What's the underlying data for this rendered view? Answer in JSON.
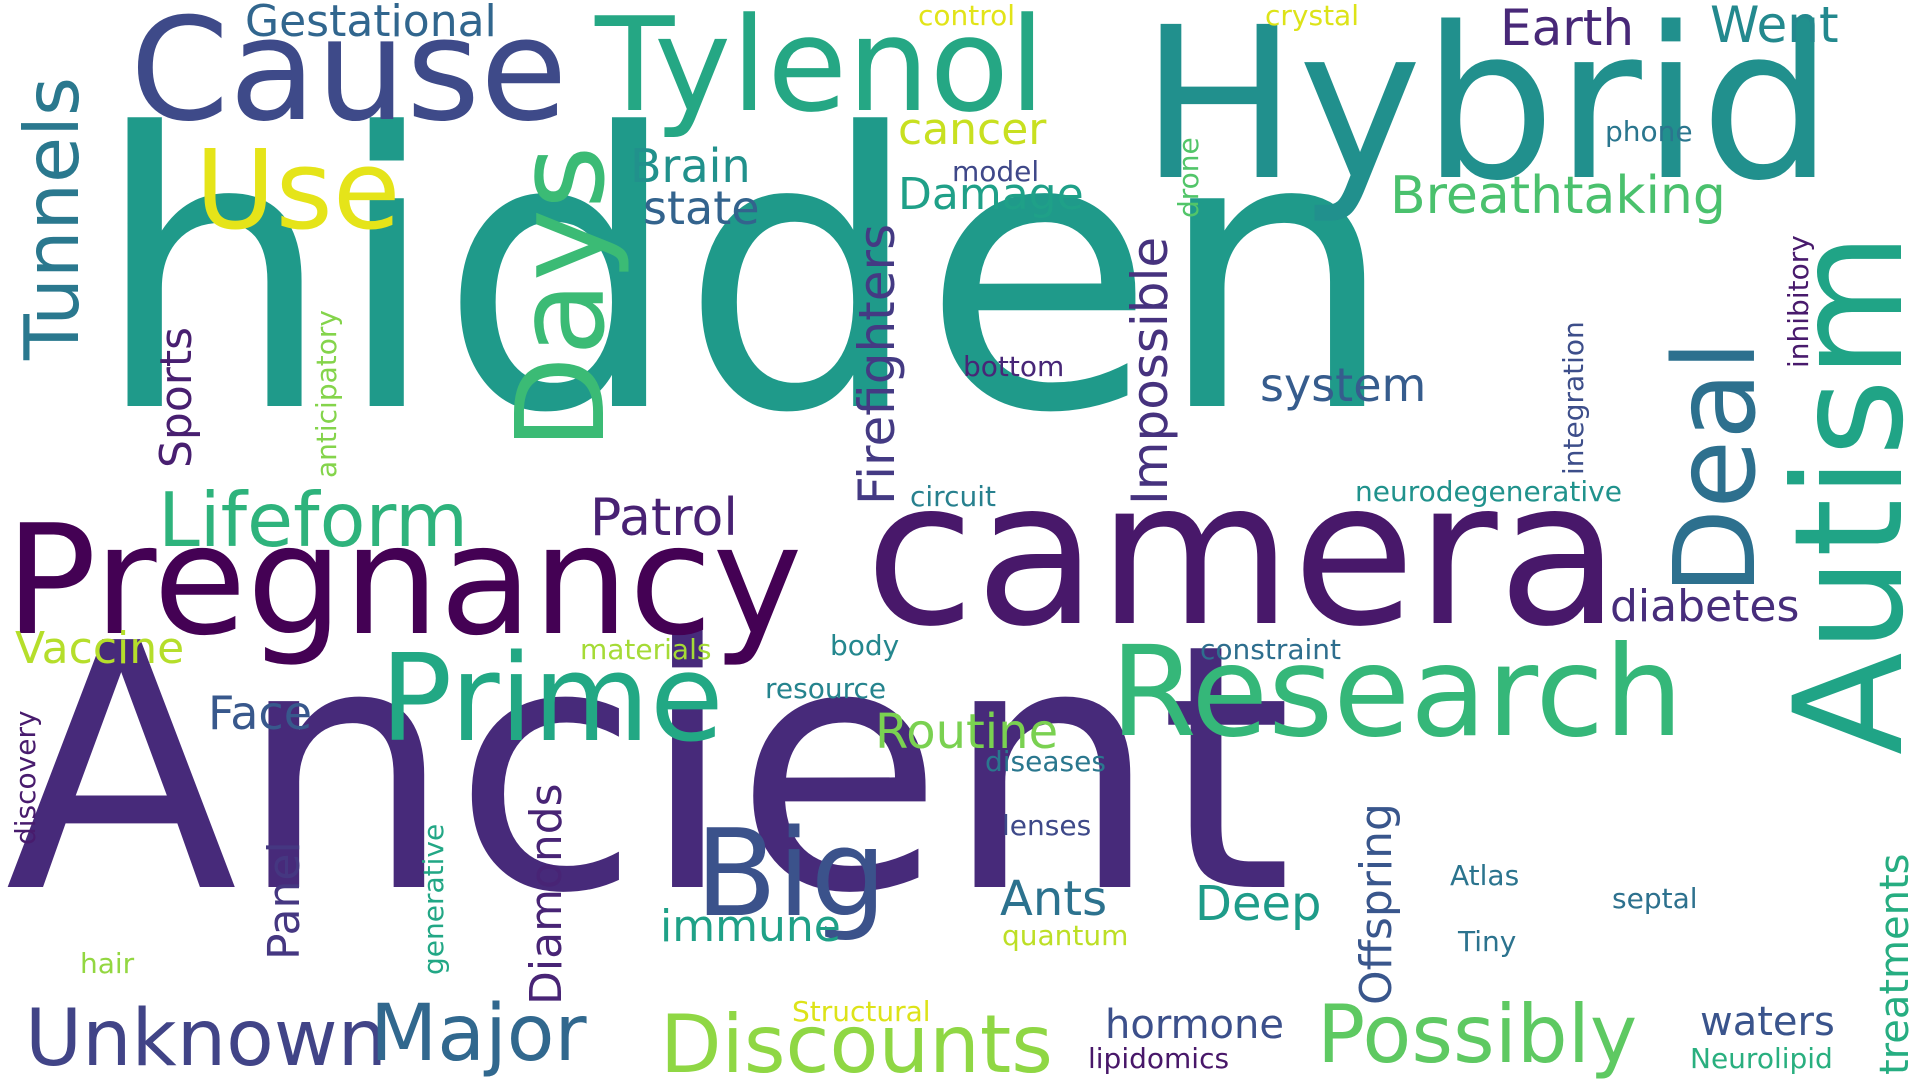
{
  "words": [
    {
      "id": "hidden",
      "text": "hidden",
      "color": "#1f9a8a"
    },
    {
      "id": "ancient",
      "text": "Ancient",
      "color": "#472a7a"
    },
    {
      "id": "camera",
      "text": "camera",
      "color": "#48186a"
    },
    {
      "id": "hybrid",
      "text": "Hybrid",
      "color": "#21908d"
    },
    {
      "id": "pregnancy",
      "text": "Pregnancy",
      "color": "#440154"
    },
    {
      "id": "cause",
      "text": "Cause",
      "color": "#3e4a89"
    },
    {
      "id": "tylenol",
      "text": "Tylenol",
      "color": "#25a784"
    },
    {
      "id": "research",
      "text": "Research",
      "color": "#35b779"
    },
    {
      "id": "prime",
      "text": "Prime",
      "color": "#22a884"
    },
    {
      "id": "autism",
      "text": "Autism",
      "color": "#20a486"
    },
    {
      "id": "days",
      "text": "Days",
      "color": "#3bbb75"
    },
    {
      "id": "use",
      "text": "Use",
      "color": "#e5e419"
    },
    {
      "id": "deal",
      "text": "Deal",
      "color": "#2d708e"
    },
    {
      "id": "big",
      "text": "Big",
      "color": "#3b528b"
    },
    {
      "id": "lifeform",
      "text": "Lifeform",
      "color": "#2eb37c"
    },
    {
      "id": "discounts",
      "text": "Discounts",
      "color": "#8fd744"
    },
    {
      "id": "possibly",
      "text": "Possibly",
      "color": "#5ec962"
    },
    {
      "id": "unknown",
      "text": "Unknown",
      "color": "#414487"
    },
    {
      "id": "major",
      "text": "Major",
      "color": "#31688e"
    },
    {
      "id": "tunnels",
      "text": "Tunnels",
      "color": "#2a788e"
    },
    {
      "id": "impossible",
      "text": "Impossible",
      "color": "#46327e"
    },
    {
      "id": "firefighters",
      "text": "Firefighters",
      "color": "#443a83"
    },
    {
      "id": "breathtaking",
      "text": "Breathtaking",
      "color": "#4ac16d"
    },
    {
      "id": "patrol",
      "text": "Patrol",
      "color": "#482173"
    },
    {
      "id": "gestational",
      "text": "Gestational",
      "color": "#31668e"
    },
    {
      "id": "earth",
      "text": "Earth",
      "color": "#482878"
    },
    {
      "id": "went",
      "text": "Went",
      "color": "#23898e"
    },
    {
      "id": "brain",
      "text": "Brain",
      "color": "#21918c"
    },
    {
      "id": "state",
      "text": "state",
      "color": "#33638d"
    },
    {
      "id": "cancer",
      "text": "cancer",
      "color": "#c8e020"
    },
    {
      "id": "damage",
      "text": "Damage",
      "color": "#1fa088"
    },
    {
      "id": "system",
      "text": "system",
      "color": "#365c8d"
    },
    {
      "id": "diabetes",
      "text": "diabetes",
      "color": "#472d7b"
    },
    {
      "id": "vaccine",
      "text": "Vaccine",
      "color": "#b5de2b"
    },
    {
      "id": "face",
      "text": "Face",
      "color": "#38588c"
    },
    {
      "id": "routine",
      "text": "Routine",
      "color": "#7ad151"
    },
    {
      "id": "sports",
      "text": "Sports",
      "color": "#481f70"
    },
    {
      "id": "diamonds",
      "text": "Diamonds",
      "color": "#482475"
    },
    {
      "id": "offspring",
      "text": "Offspring",
      "color": "#39568c"
    },
    {
      "id": "panel",
      "text": "Panel",
      "color": "#453781"
    },
    {
      "id": "ants",
      "text": "Ants",
      "color": "#2c728e"
    },
    {
      "id": "deep",
      "text": "Deep",
      "color": "#1e9c89"
    },
    {
      "id": "immune",
      "text": "immune",
      "color": "#1fa187"
    },
    {
      "id": "hormone",
      "text": "hormone",
      "color": "#3c508b"
    },
    {
      "id": "waters",
      "text": "waters",
      "color": "#3a548c"
    },
    {
      "id": "treatments",
      "text": "treatments",
      "color": "#26ad81"
    },
    {
      "id": "phone",
      "text": "phone",
      "color": "#2a768e"
    },
    {
      "id": "model",
      "text": "model",
      "color": "#3f4889"
    },
    {
      "id": "drone",
      "text": "drone",
      "color": "#52c569"
    },
    {
      "id": "anticipatory",
      "text": "anticipatory",
      "color": "#84d44b"
    },
    {
      "id": "bottom",
      "text": "bottom",
      "color": "#482677"
    },
    {
      "id": "integration",
      "text": "integration",
      "color": "#3d4e8a"
    },
    {
      "id": "inhibitory",
      "text": "inhibitory",
      "color": "#481a6c"
    },
    {
      "id": "circuit",
      "text": "circuit",
      "color": "#27808e"
    },
    {
      "id": "neurodegenerative",
      "text": "neurodegenerative",
      "color": "#20928c"
    },
    {
      "id": "materials",
      "text": "materials",
      "color": "#a5db36"
    },
    {
      "id": "body",
      "text": "body",
      "color": "#24878e"
    },
    {
      "id": "constraint",
      "text": "constraint",
      "color": "#2e6e8e"
    },
    {
      "id": "resource",
      "text": "resource",
      "color": "#25848e"
    },
    {
      "id": "diseases",
      "text": "diseases",
      "color": "#2a778e"
    },
    {
      "id": "lenses",
      "text": "lenses",
      "color": "#3e4989"
    },
    {
      "id": "atlas",
      "text": "Atlas",
      "color": "#2b748e"
    },
    {
      "id": "septal",
      "text": "septal",
      "color": "#2d718e"
    },
    {
      "id": "tiny",
      "text": "Tiny",
      "color": "#2c738e"
    },
    {
      "id": "quantum",
      "text": "quantum",
      "color": "#bddf26"
    },
    {
      "id": "structural",
      "text": "Structural",
      "color": "#dde318"
    },
    {
      "id": "lipidomics",
      "text": "lipidomics",
      "color": "#481769"
    },
    {
      "id": "neurolipid",
      "text": "Neurolipid",
      "color": "#29af7f"
    },
    {
      "id": "hair",
      "text": "hair",
      "color": "#93d741"
    },
    {
      "id": "generative",
      "text": "generative",
      "color": "#22a785"
    },
    {
      "id": "discovery",
      "text": "discovery",
      "color": "#481b6d"
    },
    {
      "id": "control",
      "text": "control",
      "color": "#e2e418"
    },
    {
      "id": "crystal",
      "text": "crystal",
      "color": "#dde318"
    }
  ]
}
